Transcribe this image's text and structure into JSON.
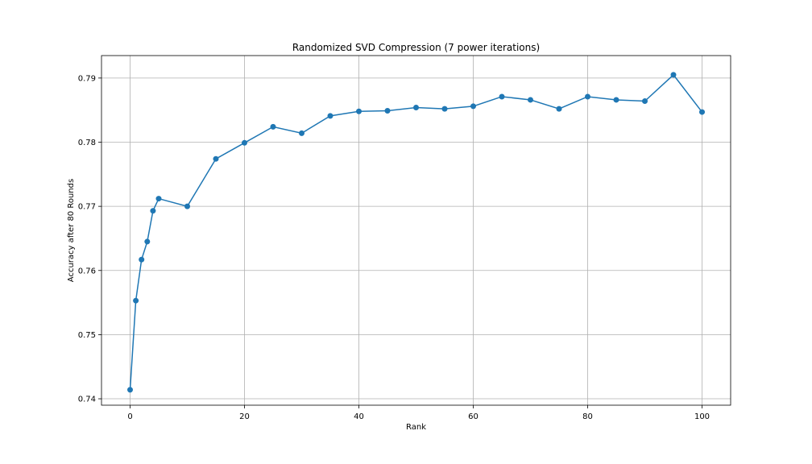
{
  "chart_data": {
    "type": "line",
    "title": "Randomized SVD Compression (7 power iterations)",
    "xlabel": "Rank",
    "ylabel": "Accuracy after 80 Rounds",
    "xlim": [
      -5,
      105
    ],
    "ylim": [
      0.739,
      0.7935
    ],
    "xticks": [
      0,
      20,
      40,
      60,
      80,
      100
    ],
    "yticks": [
      0.74,
      0.75,
      0.76,
      0.77,
      0.78,
      0.79
    ],
    "xtick_labels": [
      "0",
      "20",
      "40",
      "60",
      "80",
      "100"
    ],
    "ytick_labels": [
      "0.74",
      "0.75",
      "0.76",
      "0.77",
      "0.78",
      "0.79"
    ],
    "grid": true,
    "color": "#1f77b4",
    "marker": "circle",
    "x": [
      0,
      1,
      2,
      3,
      4,
      5,
      10,
      15,
      20,
      25,
      30,
      35,
      40,
      45,
      50,
      55,
      60,
      65,
      70,
      75,
      80,
      85,
      90,
      95,
      100
    ],
    "y": [
      0.7414,
      0.7553,
      0.7617,
      0.7645,
      0.7693,
      0.7712,
      0.77,
      0.7774,
      0.7799,
      0.7824,
      0.7814,
      0.7841,
      0.7848,
      0.7849,
      0.7854,
      0.7852,
      0.7856,
      0.7871,
      0.7866,
      0.7852,
      0.7871,
      0.7866,
      0.7864,
      0.7905,
      0.7847
    ]
  }
}
